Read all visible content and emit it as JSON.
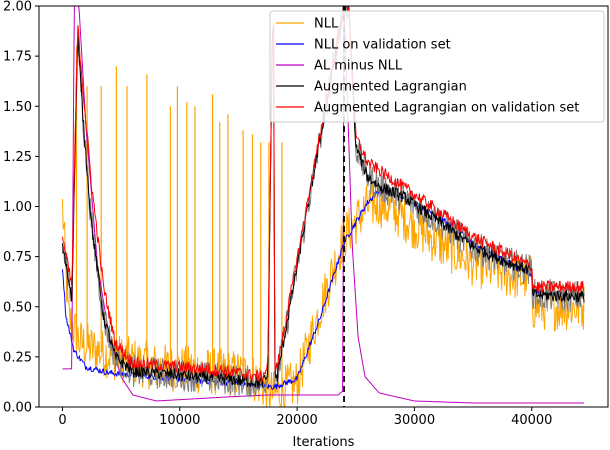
{
  "chart_data": {
    "type": "line",
    "title": "",
    "xlabel": "Iterations",
    "ylabel": "",
    "xlim": [
      -2000,
      46500
    ],
    "ylim": [
      0,
      2.0
    ],
    "x_ticks": [
      0,
      10000,
      20000,
      30000,
      40000
    ],
    "x_tick_labels": [
      "0",
      "10000",
      "20000",
      "30000",
      "40000"
    ],
    "y_ticks": [
      0,
      0.25,
      0.5,
      0.75,
      1.0,
      1.25,
      1.5,
      1.75,
      2.0
    ],
    "y_tick_labels": [
      "0.00",
      "0.25",
      "0.50",
      "0.75",
      "1.00",
      "1.25",
      "1.50",
      "1.75",
      "2.00"
    ],
    "grid": false,
    "legend_position": "upper-right",
    "annotations": [
      {
        "type": "vline",
        "x": 24000,
        "style": "dashed",
        "color": "#000000"
      }
    ],
    "series": [
      {
        "name": "NLL",
        "color": "#ffa500",
        "noise": 0.12,
        "points": [
          [
            0,
            1.0
          ],
          [
            500,
            0.45
          ],
          [
            1500,
            0.32
          ],
          [
            3000,
            0.28
          ],
          [
            5000,
            0.24
          ],
          [
            8000,
            0.2
          ],
          [
            12000,
            0.18
          ],
          [
            16000,
            0.16
          ],
          [
            18000,
            0.06
          ],
          [
            20000,
            0.12
          ],
          [
            22000,
            0.5
          ],
          [
            24000,
            0.85
          ],
          [
            26000,
            1.0
          ],
          [
            27000,
            1.02
          ],
          [
            29000,
            0.95
          ],
          [
            32000,
            0.82
          ],
          [
            35000,
            0.72
          ],
          [
            38000,
            0.66
          ],
          [
            40000,
            0.64
          ],
          [
            40100,
            0.5
          ],
          [
            44500,
            0.5
          ]
        ],
        "spikes": [
          [
            1200,
            1.8
          ],
          [
            2100,
            1.6
          ],
          [
            3300,
            1.6
          ],
          [
            4600,
            1.7
          ],
          [
            5500,
            1.6
          ],
          [
            7200,
            1.66
          ],
          [
            9200,
            1.5
          ],
          [
            9800,
            1.6
          ],
          [
            10600,
            1.52
          ],
          [
            11300,
            1.5
          ],
          [
            12800,
            1.56
          ],
          [
            13400,
            1.42
          ],
          [
            14100,
            1.46
          ],
          [
            15400,
            1.38
          ],
          [
            16200,
            1.36
          ],
          [
            16900,
            1.32
          ],
          [
            17600,
            1.32
          ],
          [
            18700,
            1.32
          ]
        ]
      },
      {
        "name": "NLL on validation set",
        "color": "#0000ff",
        "noise": 0.015,
        "points": [
          [
            0,
            0.7
          ],
          [
            300,
            0.45
          ],
          [
            1000,
            0.28
          ],
          [
            2000,
            0.2
          ],
          [
            4000,
            0.17
          ],
          [
            8000,
            0.15
          ],
          [
            12000,
            0.13
          ],
          [
            16000,
            0.11
          ],
          [
            18000,
            0.1
          ],
          [
            20000,
            0.14
          ],
          [
            22000,
            0.45
          ],
          [
            24000,
            0.82
          ],
          [
            26000,
            1.02
          ],
          [
            27000,
            1.08
          ],
          [
            29000,
            1.05
          ],
          [
            32000,
            0.95
          ],
          [
            35000,
            0.82
          ],
          [
            38000,
            0.72
          ],
          [
            40000,
            0.66
          ],
          [
            40100,
            0.58
          ],
          [
            44500,
            0.55
          ]
        ]
      },
      {
        "name": "AL minus NLL",
        "color": "#bf00bf",
        "noise": 0.0,
        "points": [
          [
            0,
            0.19
          ],
          [
            800,
            0.19
          ],
          [
            1000,
            2.0
          ],
          [
            1400,
            2.0
          ],
          [
            2000,
            1.4
          ],
          [
            3000,
            0.7
          ],
          [
            4000,
            0.35
          ],
          [
            5000,
            0.15
          ],
          [
            6000,
            0.06
          ],
          [
            8000,
            0.03
          ],
          [
            14000,
            0.05
          ],
          [
            17500,
            0.06
          ],
          [
            18000,
            0.06
          ],
          [
            21000,
            0.06
          ],
          [
            23500,
            0.06
          ],
          [
            23900,
            0.08
          ],
          [
            24000,
            2.0
          ],
          [
            24300,
            1.5
          ],
          [
            24700,
            0.8
          ],
          [
            25200,
            0.35
          ],
          [
            25800,
            0.15
          ],
          [
            27000,
            0.07
          ],
          [
            30000,
            0.03
          ],
          [
            35000,
            0.02
          ],
          [
            44500,
            0.02
          ]
        ]
      },
      {
        "name": "Augmented Lagrangian",
        "color": "#000000",
        "noise": 0.03,
        "points": [
          [
            0,
            0.8
          ],
          [
            800,
            0.55
          ],
          [
            1300,
            1.85
          ],
          [
            1800,
            1.4
          ],
          [
            2500,
            0.9
          ],
          [
            3500,
            0.45
          ],
          [
            4500,
            0.25
          ],
          [
            6000,
            0.18
          ],
          [
            10000,
            0.16
          ],
          [
            14000,
            0.14
          ],
          [
            17000,
            0.12
          ],
          [
            17500,
            0.15
          ],
          [
            17900,
            1.9
          ],
          [
            18000,
            1.9
          ],
          [
            18100,
            0.15
          ],
          [
            18300,
            0.15
          ],
          [
            24000,
            2.0
          ],
          [
            24400,
            2.0
          ],
          [
            25000,
            1.3
          ],
          [
            26000,
            1.15
          ],
          [
            27000,
            1.1
          ],
          [
            29000,
            1.05
          ],
          [
            32000,
            0.93
          ],
          [
            35000,
            0.8
          ],
          [
            38000,
            0.72
          ],
          [
            40000,
            0.68
          ],
          [
            40100,
            0.56
          ],
          [
            44500,
            0.55
          ]
        ],
        "band": 0.08,
        "band_color": "#7f7f7f"
      },
      {
        "name": "Augmented Lagrangian on validation set",
        "color": "#ff0000",
        "noise": 0.03,
        "points": [
          [
            0,
            0.85
          ],
          [
            800,
            0.6
          ],
          [
            1300,
            1.9
          ],
          [
            1800,
            1.55
          ],
          [
            2500,
            1.1
          ],
          [
            3500,
            0.6
          ],
          [
            4500,
            0.32
          ],
          [
            6000,
            0.22
          ],
          [
            10000,
            0.2
          ],
          [
            14000,
            0.18
          ],
          [
            17000,
            0.15
          ],
          [
            17500,
            0.2
          ],
          [
            17900,
            1.9
          ],
          [
            18000,
            1.9
          ],
          [
            18100,
            0.2
          ],
          [
            18300,
            0.2
          ],
          [
            24000,
            2.0
          ],
          [
            24400,
            2.0
          ],
          [
            25000,
            1.35
          ],
          [
            26000,
            1.22
          ],
          [
            27000,
            1.18
          ],
          [
            29000,
            1.1
          ],
          [
            32000,
            0.98
          ],
          [
            35000,
            0.85
          ],
          [
            38000,
            0.76
          ],
          [
            40000,
            0.7
          ],
          [
            40100,
            0.6
          ],
          [
            44500,
            0.6
          ]
        ]
      }
    ]
  }
}
